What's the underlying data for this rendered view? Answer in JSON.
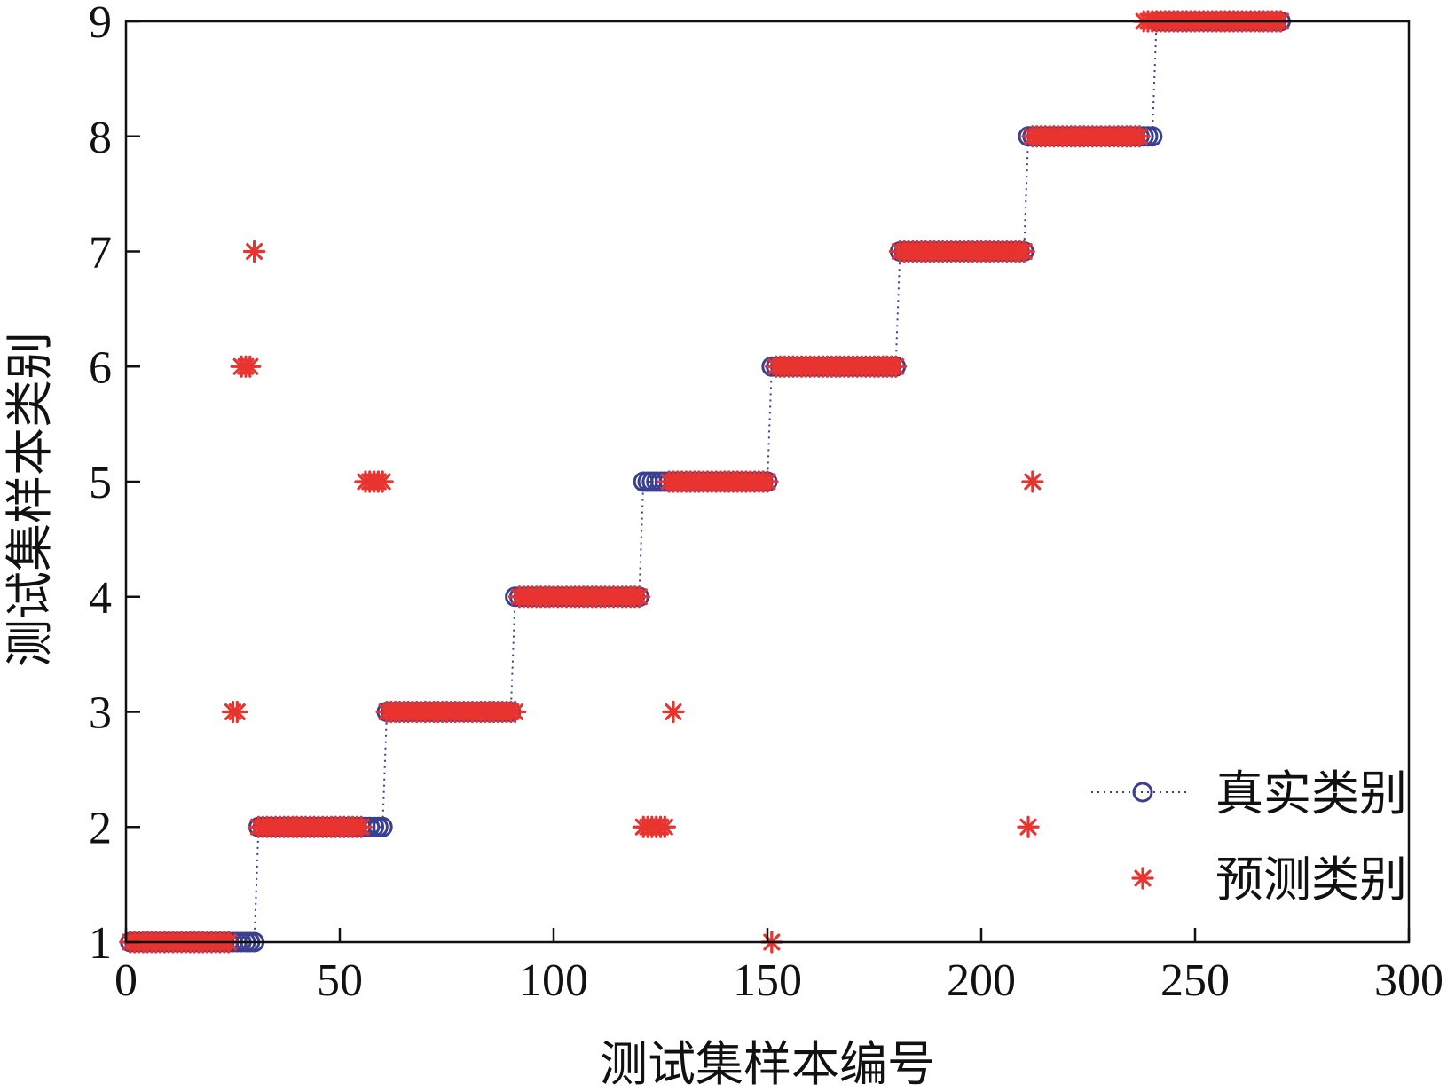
{
  "chart_data": {
    "type": "scatter",
    "xlabel": "测试集样本编号",
    "ylabel": "测试集样本类别",
    "xlim": [
      0,
      300
    ],
    "ylim": [
      1,
      9
    ],
    "xticks": [
      0,
      50,
      100,
      150,
      200,
      250,
      300
    ],
    "yticks": [
      1,
      2,
      3,
      4,
      5,
      6,
      7,
      8,
      9
    ],
    "xtick_labels": [
      "0",
      "50",
      "100",
      "150",
      "200",
      "250",
      "300"
    ],
    "ytick_labels": [
      "1",
      "2",
      "3",
      "4",
      "5",
      "6",
      "7",
      "8",
      "9"
    ],
    "grid": false,
    "legend_position": "bottom-right",
    "series": [
      {
        "name": "真实类别",
        "marker": "circle",
        "line": "dotted",
        "color": "#3a3f8f",
        "segments": [
          {
            "x_start": 1,
            "x_end": 30,
            "y": 1
          },
          {
            "x_start": 31,
            "x_end": 60,
            "y": 2
          },
          {
            "x_start": 61,
            "x_end": 90,
            "y": 3
          },
          {
            "x_start": 91,
            "x_end": 120,
            "y": 4
          },
          {
            "x_start": 121,
            "x_end": 150,
            "y": 5
          },
          {
            "x_start": 151,
            "x_end": 180,
            "y": 6
          },
          {
            "x_start": 181,
            "x_end": 210,
            "y": 7
          },
          {
            "x_start": 211,
            "x_end": 240,
            "y": 8
          },
          {
            "x_start": 241,
            "x_end": 270,
            "y": 9
          }
        ]
      },
      {
        "name": "预测类别",
        "marker": "asterisk",
        "color": "#e8332f",
        "segments": [
          {
            "x_start": 1,
            "x_end": 24,
            "y": 1
          },
          {
            "x_start": 31,
            "x_end": 55,
            "y": 2
          },
          {
            "x_start": 61,
            "x_end": 88,
            "y": 3
          },
          {
            "x_start": 93,
            "x_end": 120,
            "y": 4
          },
          {
            "x_start": 127,
            "x_end": 150,
            "y": 5
          },
          {
            "x_start": 152,
            "x_end": 180,
            "y": 6
          },
          {
            "x_start": 181,
            "x_end": 210,
            "y": 7
          },
          {
            "x_start": 212,
            "x_end": 237,
            "y": 8
          },
          {
            "x_start": 238,
            "x_end": 270,
            "y": 9
          }
        ],
        "points": [
          {
            "x": 25,
            "y": 3
          },
          {
            "x": 26,
            "y": 3
          },
          {
            "x": 27,
            "y": 6
          },
          {
            "x": 28,
            "y": 6
          },
          {
            "x": 29,
            "y": 6
          },
          {
            "x": 30,
            "y": 7
          },
          {
            "x": 56,
            "y": 5
          },
          {
            "x": 57,
            "y": 5
          },
          {
            "x": 58,
            "y": 5
          },
          {
            "x": 59,
            "y": 5
          },
          {
            "x": 60,
            "y": 5
          },
          {
            "x": 89,
            "y": 3
          },
          {
            "x": 90,
            "y": 3
          },
          {
            "x": 91,
            "y": 3
          },
          {
            "x": 92,
            "y": 4
          },
          {
            "x": 121,
            "y": 2
          },
          {
            "x": 122,
            "y": 2
          },
          {
            "x": 123,
            "y": 2
          },
          {
            "x": 124,
            "y": 2
          },
          {
            "x": 125,
            "y": 2
          },
          {
            "x": 126,
            "y": 2
          },
          {
            "x": 128,
            "y": 3
          },
          {
            "x": 151,
            "y": 1
          },
          {
            "x": 211,
            "y": 2
          },
          {
            "x": 212,
            "y": 5
          }
        ]
      }
    ]
  }
}
